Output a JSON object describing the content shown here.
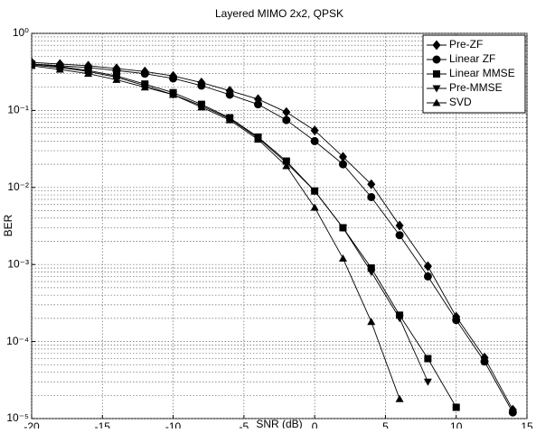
{
  "chart_data": {
    "type": "line",
    "title": "Layered MIMO 2x2, QPSK",
    "x_label": "SNR (dB)",
    "y_label": "BER",
    "log_y": true,
    "grid": true,
    "legend": "top-right",
    "xlim": [
      -20,
      15
    ],
    "xticks": [
      -20,
      -15,
      -10,
      -5,
      0,
      5,
      10,
      15
    ],
    "ylim": [
      1e-05,
      1
    ],
    "yticks": [
      {
        "value": 1e-05,
        "label": "10⁻⁵"
      },
      {
        "value": 0.0001,
        "label": "10⁻⁴"
      },
      {
        "value": 0.001,
        "label": "10⁻³"
      },
      {
        "value": 0.01,
        "label": "10⁻²"
      },
      {
        "value": 0.1,
        "label": "10⁻¹"
      },
      {
        "value": 1,
        "label": "10⁰"
      }
    ],
    "x": [
      -20,
      -18,
      -16,
      -14,
      -12,
      -10,
      -8,
      -6,
      -4,
      -2,
      0,
      2,
      4,
      6,
      8,
      10,
      12,
      14
    ],
    "series": [
      {
        "name": "Pre-ZF",
        "color": "#000000",
        "marker": "diamond",
        "values": [
          0.42,
          0.4,
          0.38,
          0.35,
          0.32,
          0.28,
          0.23,
          0.18,
          0.14,
          0.095,
          0.055,
          0.025,
          0.011,
          0.0032,
          0.00095,
          0.00021,
          6.2e-05,
          1.3e-05
        ]
      },
      {
        "name": "Linear ZF",
        "color": "#000000",
        "marker": "circle",
        "values": [
          0.4,
          0.38,
          0.36,
          0.33,
          0.3,
          0.26,
          0.21,
          0.16,
          0.12,
          0.075,
          0.04,
          0.02,
          0.0075,
          0.0024,
          0.0007,
          0.00019,
          5.5e-05,
          1.2e-05
        ]
      },
      {
        "name": "Linear MMSE",
        "color": "#000000",
        "marker": "square",
        "values": [
          0.4,
          0.37,
          0.33,
          0.28,
          0.22,
          0.17,
          0.12,
          0.08,
          0.045,
          0.022,
          0.009,
          0.003,
          0.0009,
          0.00022,
          6e-05,
          1.4e-05,
          null,
          null
        ]
      },
      {
        "name": "Pre-MMSE",
        "color": "#000000",
        "marker": "triangle-down",
        "values": [
          0.39,
          0.36,
          0.32,
          0.27,
          0.21,
          0.16,
          0.115,
          0.078,
          0.044,
          0.021,
          0.009,
          0.003,
          0.0008,
          0.0002,
          3e-05,
          null,
          null,
          null
        ]
      },
      {
        "name": "SVD",
        "color": "#000000",
        "marker": "triangle-up",
        "values": [
          0.38,
          0.34,
          0.3,
          0.25,
          0.2,
          0.16,
          0.11,
          0.075,
          0.042,
          0.019,
          0.0055,
          0.0012,
          0.00018,
          1.8e-05,
          null,
          null,
          null,
          null
        ]
      }
    ]
  }
}
